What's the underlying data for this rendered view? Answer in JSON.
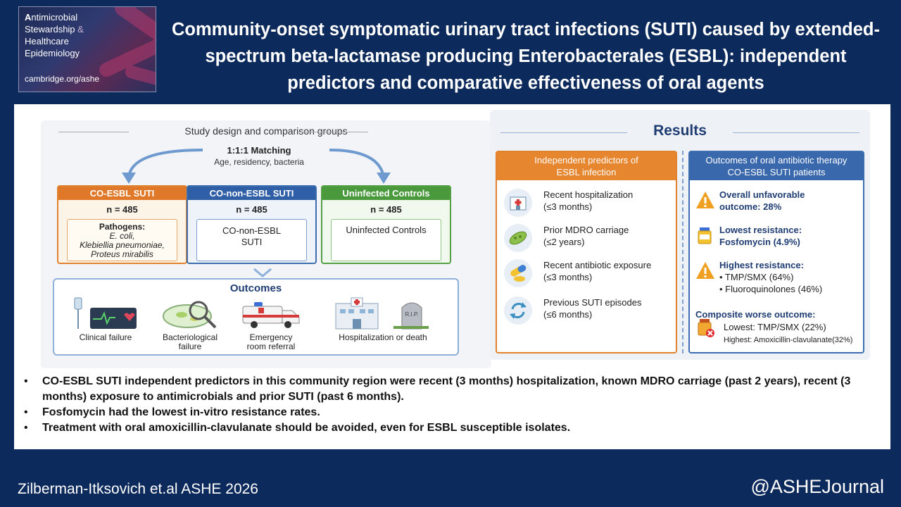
{
  "logo": {
    "lines": [
      "Antimicrobial",
      "Stewardship",
      "&",
      "Healthcare",
      "Epidemiology"
    ],
    "url": "cambridge.org/ashe"
  },
  "title": "Community-onset symptomatic urinary tract infections (SUTI) caused by extended-spectrum beta-lactamase producing Enterobacterales (ESBL): independent predictors and comparative effectiveness of oral agents",
  "study": {
    "header": "Study design and comparison groups",
    "matching_title": "1:1:1 Matching",
    "matching_sub": "Age, residency, bacteria",
    "groups": [
      {
        "name": "CO-ESBL SUTI",
        "n": "n = 485",
        "detail_title": "Pathogens:",
        "detail_lines": [
          "E. coli,",
          "Klebiellia pneumoniae,",
          "Proteus mirabilis"
        ]
      },
      {
        "name": "CO-non-ESBL SUTI",
        "n": "n = 485",
        "detail_lines": [
          "CO-non-ESBL",
          "SUTI"
        ]
      },
      {
        "name": "Uninfected Controls",
        "n": "n = 485",
        "detail_lines": [
          "Uninfected Controls"
        ]
      }
    ],
    "outcomes_title": "Outcomes",
    "outcomes": [
      {
        "icon": "iv-monitor-icon",
        "lines": [
          "Clinical failure"
        ]
      },
      {
        "icon": "petri-dish-icon",
        "lines": [
          "Bacteriological",
          "failure"
        ]
      },
      {
        "icon": "ambulance-icon",
        "lines": [
          "Emergency",
          "room referral"
        ]
      },
      {
        "icon": "hospital-grave-icon",
        "lines": [
          "Hospitalization or death"
        ]
      }
    ]
  },
  "results": {
    "header": "Results",
    "left_header": [
      "Independent predictors of",
      "ESBL infection"
    ],
    "predictors": [
      {
        "icon": "hospital-icon",
        "line1": "Recent hospitalization",
        "line2": "(≤3 months)"
      },
      {
        "icon": "bacteria-icon",
        "line1": "Prior MDRO carriage",
        "line2": "(≤2 years)"
      },
      {
        "icon": "pills-icon",
        "line1": "Recent antibiotic exposure",
        "line2": "(≤3 months)"
      },
      {
        "icon": "recurrence-icon",
        "line1": "Previous SUTI episodes",
        "line2": "(≤6 months)"
      }
    ],
    "right_header": [
      "Outcomes of oral antibiotic therapy",
      "CO-ESBL SUTI patients"
    ],
    "outcomes": {
      "o1_title": "Overall unfavorable",
      "o1_value": "outcome: 28%",
      "o2_title": "Lowest resistance:",
      "o2_value": "Fosfomycin (4.9%)",
      "o3_title": "Highest resistance:",
      "o3_items": [
        "• TMP/SMX (64%)",
        "• Fluoroquinolones (46%)"
      ],
      "o4_title": "Composite worse outcome:",
      "o4_low": "Lowest: TMP/SMX (22%)",
      "o4_high": "Highest: Amoxicillin-clavulanate(32%)"
    }
  },
  "bullets": [
    "CO-ESBL SUTI independent predictors in this community region were recent (3 months) hospitalization, known MDRO carriage (past 2 years), recent (3 months) exposure to antimicrobials and prior SUTI (past 6 months).",
    "Fosfomycin had the lowest in-vitro resistance rates.",
    "Treatment with oral amoxicillin-clavulanate should be avoided, even for ESBL susceptible isolates."
  ],
  "footer": {
    "citation": "Zilberman-Itksovich et.al ASHE 2026",
    "handle": "@ASHEJournal"
  },
  "colors": {
    "background": "#0d2a5c",
    "orange": "#e0782a",
    "blue": "#2f5fa6",
    "green": "#4a9a3d",
    "navy_text": "#1f3d73"
  }
}
